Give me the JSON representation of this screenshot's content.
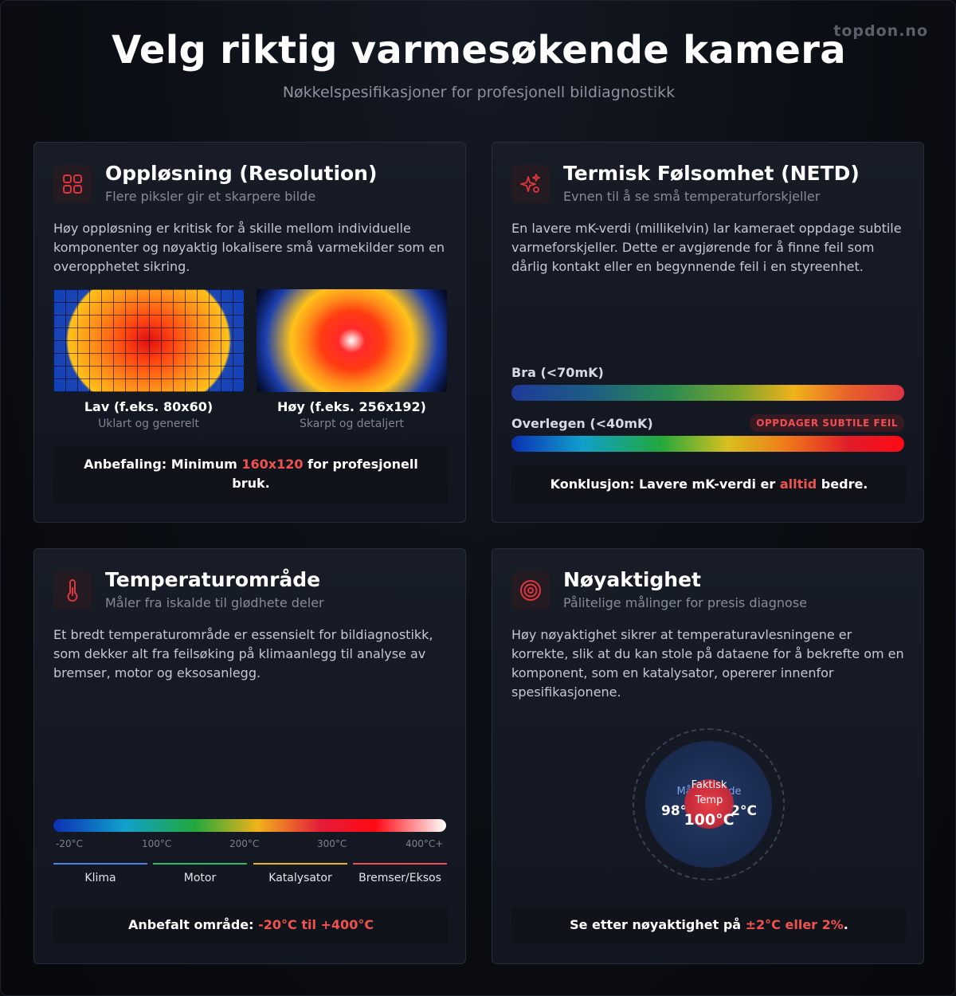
{
  "header": {
    "title": "Velg riktig varmesøkende kamera",
    "subtitle": "Nøkkelspesifikasjoner for profesjonell bildiagnostikk",
    "brand": "topdon.no"
  },
  "cards": {
    "resolution": {
      "icon": "grid-icon",
      "title": "Oppløsning (Resolution)",
      "subtitle": "Flere piksler gir et skarpere bilde",
      "body": "Høy oppløsning er kritisk for å skille mellom individuelle komponenter og nøyaktig lokalisere små varmekilder som en overopphetet sikring.",
      "low_label": "Lav (f.eks. 80x60)",
      "low_caption": "Uklart og generelt",
      "high_label": "Høy (f.eks. 256x192)",
      "high_caption": "Skarpt og detaljert",
      "reco_prefix": "Anbefaling: Minimum ",
      "reco_highlight": "160x120",
      "reco_suffix": " for profesjonell bruk."
    },
    "netd": {
      "icon": "sparkles-icon",
      "title": "Termisk Følsomhet (NETD)",
      "subtitle": "Evnen til å se små temperaturforskjeller",
      "body": "En lavere mK-verdi (millikelvin) lar kameraet oppdage subtile varmeforskjeller. Dette er avgjørende for å finne feil som dårlig kontakt eller en begynnende feil i en styreenhet.",
      "good_label": "Bra (<70mK)",
      "superior_label": "Overlegen (<40mK)",
      "badge": "OPPDAGER SUBTILE FEIL",
      "reco_prefix": "Konklusjon: Lavere mK-verdi er ",
      "reco_highlight": "alltid",
      "reco_suffix": " bedre."
    },
    "temperature": {
      "icon": "thermometer-icon",
      "title": "Temperaturområde",
      "subtitle": "Måler fra iskalde til glødhete deler",
      "body": "Et bredt temperaturområde er essensielt for bildiagnostikk, som dekker alt fra feilsøking på klimaanlegg til analyse av bremser, motor og eksosanlegg.",
      "ticks": [
        "-20°C",
        "100°C",
        "200°C",
        "300°C",
        "400°C+"
      ],
      "zones": [
        {
          "label": "Klima",
          "color": "#4f7fe0"
        },
        {
          "label": "Motor",
          "color": "#35b86a"
        },
        {
          "label": "Katalysator",
          "color": "#e6b52a"
        },
        {
          "label": "Bremser/Eksos",
          "color": "#e65454"
        }
      ],
      "reco_prefix": "Anbefalt område: ",
      "reco_highlight": "-20°C til +400°C",
      "reco_suffix": ""
    },
    "accuracy": {
      "icon": "target-icon",
      "title": "Nøyaktighet",
      "subtitle": "Pålitelige målinger for presis diagnose",
      "body": "Høy nøyaktighet sikrer at temperaturavlesningene er korrekte, slik at du kan stole på dataene for å bekrefte om en komponent, som en katalysator, opererer innenfor spesifikasjonene.",
      "range_label": "Måleområde",
      "range_value": "98°C - 102°C",
      "actual_label": "Faktisk Temp",
      "actual_value": "100°C",
      "reco_prefix": "Se etter nøyaktighet på ",
      "reco_highlight": "±2°C eller 2%",
      "reco_suffix": "."
    }
  },
  "colors": {
    "accent": "#ef5350",
    "background": "#0a0c11",
    "card": "#171c27"
  }
}
